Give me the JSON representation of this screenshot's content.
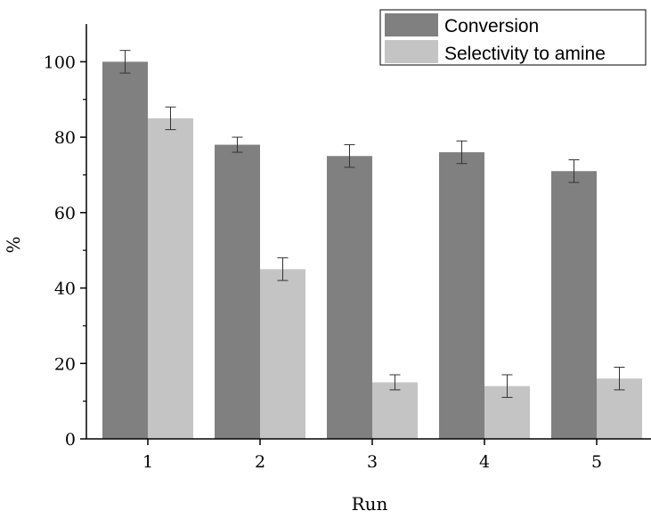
{
  "chart_data": {
    "type": "bar",
    "categories": [
      "1",
      "2",
      "3",
      "4",
      "5"
    ],
    "series": [
      {
        "name": "Conversion",
        "color": "#808080",
        "values": [
          100,
          78,
          75,
          76,
          71
        ],
        "errors": [
          3,
          2,
          3,
          3,
          3
        ]
      },
      {
        "name": "Selectivity to amine",
        "color": "#c4c4c4",
        "values": [
          85,
          45,
          15,
          14,
          16
        ],
        "errors": [
          3,
          3,
          2,
          3,
          3
        ]
      }
    ],
    "xlabel": "Run",
    "ylabel": "%",
    "ylim": [
      0,
      110
    ],
    "yticks": [
      0,
      20,
      40,
      60,
      80,
      100
    ],
    "legend_position": "top-right",
    "grid": false
  }
}
